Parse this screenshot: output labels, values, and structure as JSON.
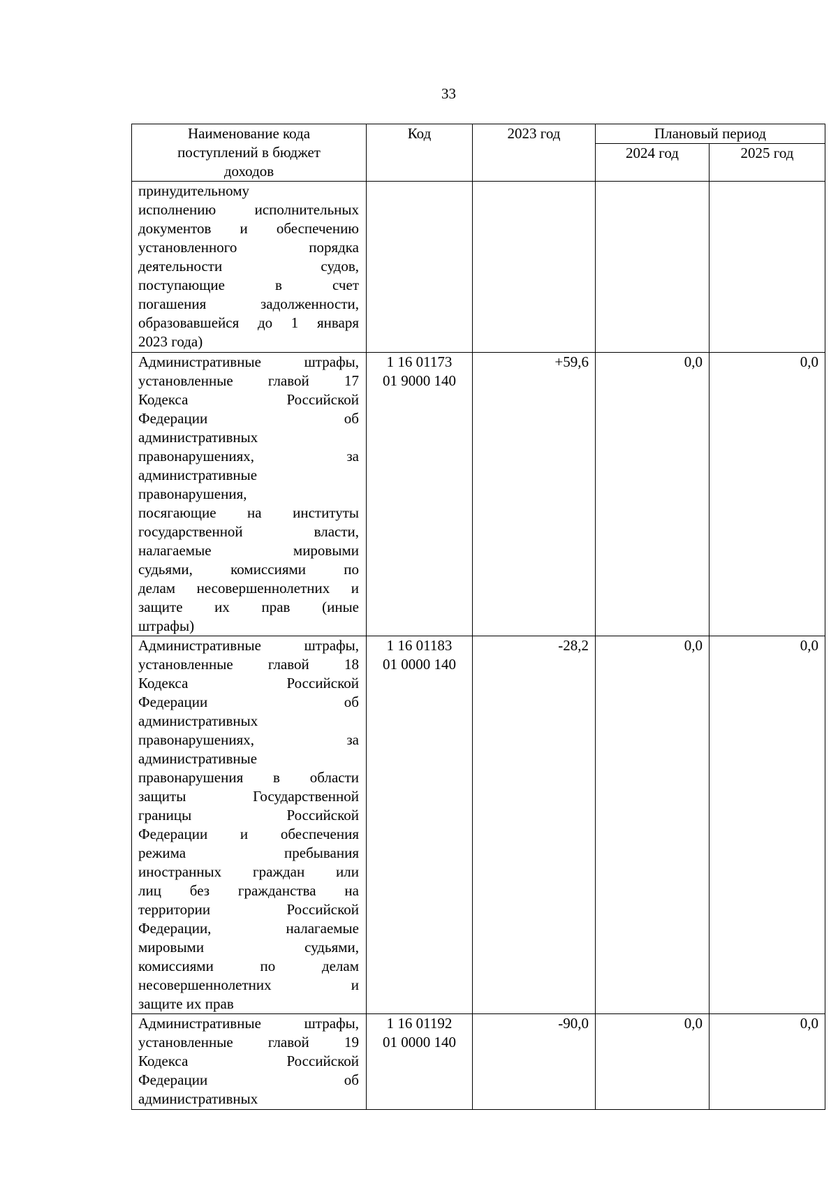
{
  "page_number": "33",
  "header": {
    "name": [
      "Наименование кода",
      "поступлений в бюджет",
      "доходов"
    ],
    "code": "Код",
    "y2023": "2023 год",
    "planned": "Плановый период",
    "y2024": "2024 год",
    "y2025": "2025 год"
  },
  "rows": [
    {
      "name": [
        "принудительному",
        "исполнению исполнительных",
        "документов и обеспечению",
        "установленного порядка",
        "деятельности судов,",
        "поступающие в счет",
        "погашения задолженности,",
        "образовавшейся до 1 января",
        "2023 года)"
      ],
      "code": [
        "",
        ""
      ],
      "y2023": "",
      "y2024": "",
      "y2025": ""
    },
    {
      "name": [
        "Административные штрафы,",
        "установленные главой 17",
        "Кодекса Российской",
        "Федерации об",
        "административных",
        "правонарушениях, за",
        "административные",
        "правонарушения,",
        "посягающие на институты",
        "государственной власти,",
        "налагаемые мировыми",
        "судьями, комиссиями по",
        "делам несовершеннолетних и",
        "защите их прав (иные",
        "штрафы)"
      ],
      "code": [
        "1 16 01173",
        "01 9000 140"
      ],
      "y2023": "+59,6",
      "y2024": "0,0",
      "y2025": "0,0"
    },
    {
      "name": [
        "Административные штрафы,",
        "установленные главой 18",
        "Кодекса Российской",
        "Федерации об",
        "административных",
        "правонарушениях, за",
        "административные",
        "правонарушения в области",
        "защиты Государственной",
        "границы Российской",
        "Федерации и обеспечения",
        "режима пребывания",
        "иностранных граждан или",
        "лиц без гражданства на",
        "территории Российской",
        "Федерации, налагаемые",
        "мировыми судьями,",
        "комиссиями по делам",
        "несовершеннолетних и",
        "защите их прав"
      ],
      "code": [
        "1 16 01183",
        "01 0000 140"
      ],
      "y2023": "-28,2",
      "y2024": "0,0",
      "y2025": "0,0"
    },
    {
      "name": [
        "Административные штрафы,",
        "установленные главой 19",
        "Кодекса Российской",
        "Федерации об",
        "административных"
      ],
      "code": [
        "1 16 01192",
        "01 0000 140"
      ],
      "y2023": "-90,0",
      "y2024": "0,0",
      "y2025": "0,0"
    }
  ]
}
